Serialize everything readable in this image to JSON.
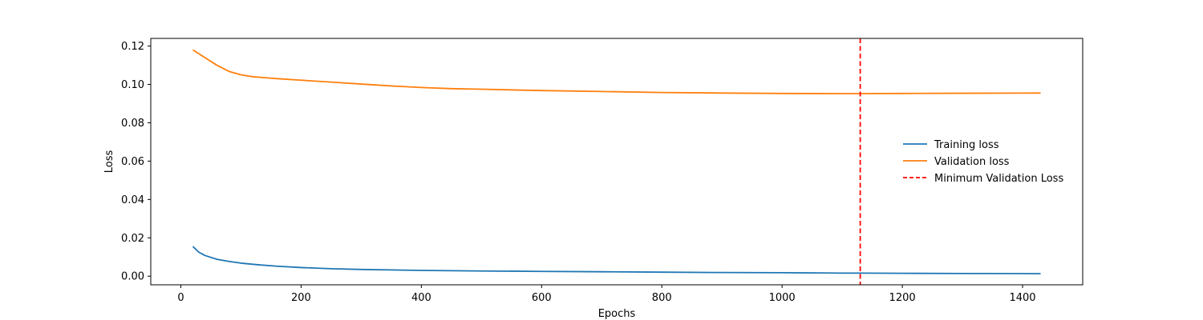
{
  "chart_data": {
    "type": "line",
    "title": "",
    "xlabel": "Epochs",
    "ylabel": "Loss",
    "xlim": [
      -50,
      1500
    ],
    "ylim": [
      -0.0045,
      0.124
    ],
    "xticks": [
      0,
      200,
      400,
      600,
      800,
      1000,
      1200,
      1400
    ],
    "yticks": [
      0.0,
      0.02,
      0.04,
      0.06,
      0.08,
      0.1,
      0.12
    ],
    "ytick_labels": [
      "0.00",
      "0.02",
      "0.04",
      "0.06",
      "0.08",
      "0.10",
      "0.12"
    ],
    "grid": false,
    "legend_position": "center-right",
    "series": [
      {
        "name": "Training loss",
        "color": "#1f77b4",
        "style": "solid",
        "x": [
          20,
          30,
          40,
          60,
          80,
          100,
          130,
          160,
          200,
          250,
          300,
          400,
          500,
          600,
          700,
          800,
          900,
          1000,
          1100,
          1130,
          1200,
          1300,
          1430
        ],
        "y": [
          0.0155,
          0.0125,
          0.0108,
          0.0088,
          0.0077,
          0.0068,
          0.0059,
          0.0052,
          0.0045,
          0.0039,
          0.0035,
          0.003,
          0.0027,
          0.0025,
          0.0023,
          0.0021,
          0.0019,
          0.0018,
          0.0016,
          0.0016,
          0.0015,
          0.0014,
          0.0013
        ]
      },
      {
        "name": "Validation loss",
        "color": "#ff7f0e",
        "style": "solid",
        "x": [
          20,
          40,
          60,
          80,
          100,
          120,
          140,
          160,
          200,
          250,
          300,
          350,
          400,
          450,
          500,
          600,
          700,
          800,
          900,
          1000,
          1100,
          1130,
          1200,
          1300,
          1430
        ],
        "y": [
          0.118,
          0.114,
          0.11,
          0.1068,
          0.105,
          0.104,
          0.1035,
          0.103,
          0.1022,
          0.1012,
          0.1002,
          0.0992,
          0.0984,
          0.0978,
          0.0975,
          0.0968,
          0.0963,
          0.0958,
          0.0955,
          0.0953,
          0.0952,
          0.0952,
          0.0953,
          0.0954,
          0.0955
        ]
      }
    ],
    "vlines": [
      {
        "name": "Minimum Validation Loss",
        "color": "#ff0000",
        "style": "dashed",
        "x": 1130
      }
    ]
  }
}
